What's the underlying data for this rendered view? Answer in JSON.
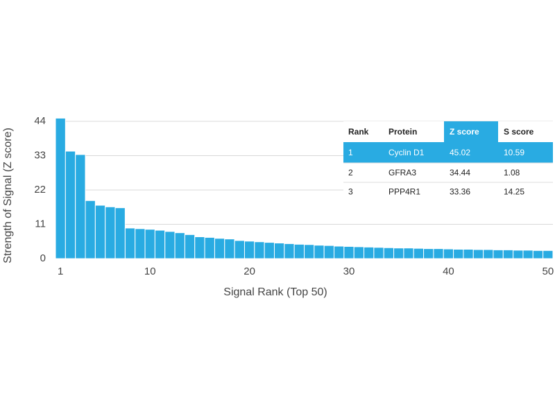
{
  "chart_data": {
    "type": "bar",
    "x_label": "Signal Rank (Top 50)",
    "y_label": "Strength of Signal (Z score)",
    "x": [
      1,
      2,
      3,
      4,
      5,
      6,
      7,
      8,
      9,
      10,
      11,
      12,
      13,
      14,
      15,
      16,
      17,
      18,
      19,
      20,
      21,
      22,
      23,
      24,
      25,
      26,
      27,
      28,
      29,
      30,
      31,
      32,
      33,
      34,
      35,
      36,
      37,
      38,
      39,
      40,
      41,
      42,
      43,
      44,
      45,
      46,
      47,
      48,
      49,
      50
    ],
    "values": [
      45.02,
      34.44,
      33.36,
      18.6,
      17.1,
      16.6,
      16.3,
      9.8,
      9.6,
      9.4,
      9.1,
      8.7,
      8.3,
      7.7,
      7.0,
      6.8,
      6.5,
      6.3,
      5.8,
      5.6,
      5.4,
      5.2,
      5.0,
      4.8,
      4.6,
      4.5,
      4.3,
      4.2,
      4.0,
      3.9,
      3.8,
      3.7,
      3.6,
      3.5,
      3.4,
      3.4,
      3.3,
      3.2,
      3.2,
      3.1,
      3.0,
      3.0,
      2.9,
      2.9,
      2.8,
      2.8,
      2.7,
      2.7,
      2.6,
      2.6
    ],
    "color": "#29abe2",
    "xlim": [
      0.5,
      50.5
    ],
    "xticks": [
      1,
      10,
      20,
      30,
      40,
      50
    ],
    "ylim": [
      0,
      44
    ],
    "yticks": [
      0,
      11,
      22,
      33,
      44
    ],
    "grid": true
  },
  "table": {
    "columns": [
      "Rank",
      "Protein",
      "Z score",
      "S score"
    ],
    "rows": [
      [
        "1",
        "Cyclin D1",
        "45.02",
        "10.59"
      ],
      [
        "2",
        "GFRA3",
        "34.44",
        "1.08"
      ],
      [
        "3",
        "PPP4R1",
        "33.36",
        "14.25"
      ]
    ],
    "highlight_color": "#29abe2"
  }
}
